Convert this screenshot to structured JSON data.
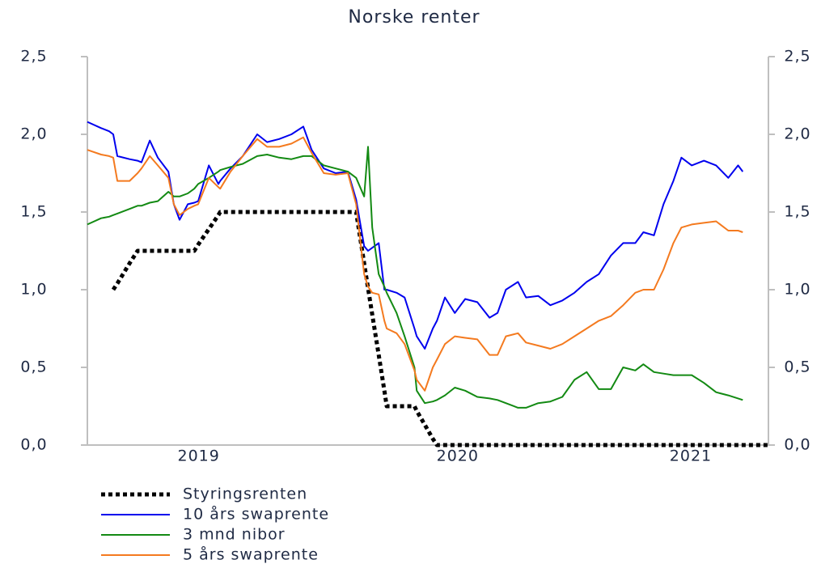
{
  "chart_data": {
    "type": "line",
    "title": "Norske renter",
    "x": [
      2019.07,
      2019.123,
      2019.154,
      2019.17,
      2019.186,
      2019.233,
      2019.264,
      2019.279,
      2019.311,
      2019.342,
      2019.383,
      2019.404,
      2019.426,
      2019.458,
      2019.483,
      2019.498,
      2019.539,
      2019.576,
      2019.583,
      2019.623,
      2019.67,
      2019.726,
      2019.764,
      2019.811,
      2019.858,
      2019.904,
      2019.936,
      2019.983,
      2020.029,
      2020.076,
      2020.108,
      2020.139,
      2020.154,
      2020.17,
      2020.195,
      2020.217,
      2020.226,
      2020.264,
      2020.295,
      2020.333,
      2020.342,
      2020.373,
      2020.404,
      2020.42,
      2020.451,
      2020.489,
      2020.529,
      2020.576,
      2020.623,
      2020.654,
      2020.686,
      2020.733,
      2020.764,
      2020.811,
      2020.858,
      2020.904,
      2020.951,
      2020.998,
      2021.045,
      2021.092,
      2021.139,
      2021.186,
      2021.217,
      2021.258,
      2021.295,
      2021.333,
      2021.364,
      2021.404,
      2021.451,
      2021.498,
      2021.545,
      2021.583,
      2021.601,
      2021.7
    ],
    "xlim": [
      2019.07,
      2021.7
    ],
    "xticks": [
      {
        "value": 2019.5,
        "label": "2019"
      },
      {
        "value": 2020.5,
        "label": "2020"
      },
      {
        "value": 2021.4,
        "label": "2021"
      }
    ],
    "ylim": [
      0,
      2.5
    ],
    "yticks": [
      {
        "value": 0,
        "label": "0,0"
      },
      {
        "value": 0.5,
        "label": "0,5"
      },
      {
        "value": 1,
        "label": "1,0"
      },
      {
        "value": 1.5,
        "label": "1,5"
      },
      {
        "value": 2,
        "label": "2,0"
      },
      {
        "value": 2.5,
        "label": "2,5"
      }
    ],
    "y2lim": [
      0,
      2.5
    ],
    "y2ticks": [
      {
        "value": 0,
        "label": "0,0"
      },
      {
        "value": 0.5,
        "label": "0,5"
      },
      {
        "value": 1,
        "label": "1,0"
      },
      {
        "value": 1.5,
        "label": "1,5"
      },
      {
        "value": 2,
        "label": "2,0"
      },
      {
        "value": 2.5,
        "label": "2,5"
      }
    ],
    "legend": "bottom-left",
    "series": [
      {
        "name": "Styringsrenten",
        "color": "#000000",
        "dotted": true,
        "values": [
          null,
          null,
          null,
          1.0,
          1.04,
          1.17,
          1.25,
          1.25,
          1.25,
          1.25,
          1.25,
          1.25,
          1.25,
          1.25,
          1.25,
          1.29,
          1.39,
          1.48,
          1.5,
          1.5,
          1.5,
          1.5,
          1.5,
          1.5,
          1.5,
          1.5,
          1.5,
          1.5,
          1.5,
          1.5,
          1.5,
          1.17,
          1.01,
          0.84,
          0.58,
          0.35,
          0.25,
          0.25,
          0.25,
          0.25,
          0.22,
          0.13,
          0.04,
          0,
          0,
          0,
          0,
          0,
          0,
          0,
          0,
          0,
          0,
          0,
          0,
          0,
          0,
          0,
          0,
          0,
          0,
          0,
          0,
          0,
          0,
          0,
          0,
          0,
          0,
          0,
          0,
          0,
          0,
          0
        ]
      },
      {
        "name": "10 års swaprente",
        "color": "#0000ee",
        "values": [
          2.08,
          2.04,
          2.02,
          2.0,
          1.86,
          1.84,
          1.83,
          1.82,
          1.96,
          1.85,
          1.76,
          1.55,
          1.45,
          1.55,
          1.56,
          1.57,
          1.8,
          1.68,
          1.7,
          1.78,
          1.86,
          2.0,
          1.95,
          1.97,
          2.0,
          2.05,
          1.9,
          1.78,
          1.75,
          1.76,
          1.58,
          1.28,
          1.25,
          1.27,
          1.3,
          1.0,
          1.0,
          0.98,
          0.95,
          0.75,
          0.7,
          0.62,
          0.75,
          0.8,
          0.95,
          0.85,
          0.94,
          0.92,
          0.82,
          0.85,
          1.0,
          1.05,
          0.95,
          0.96,
          0.9,
          0.93,
          0.98,
          1.05,
          1.1,
          1.22,
          1.3,
          1.3,
          1.37,
          1.35,
          1.55,
          1.7,
          1.85,
          1.8,
          1.83,
          1.8,
          1.72,
          1.8,
          1.76,
          null
        ]
      },
      {
        "name": "3 mnd nibor",
        "color": "#138a13",
        "values": [
          1.42,
          1.46,
          1.47,
          1.48,
          1.49,
          1.52,
          1.54,
          1.54,
          1.56,
          1.57,
          1.63,
          1.6,
          1.6,
          1.62,
          1.65,
          1.68,
          1.72,
          1.76,
          1.77,
          1.79,
          1.81,
          1.86,
          1.87,
          1.85,
          1.84,
          1.86,
          1.86,
          1.8,
          1.78,
          1.76,
          1.72,
          1.6,
          1.92,
          1.4,
          1.1,
          1.02,
          0.98,
          0.85,
          0.7,
          0.5,
          0.35,
          0.27,
          0.28,
          0.29,
          0.32,
          0.37,
          0.35,
          0.31,
          0.3,
          0.29,
          0.27,
          0.24,
          0.24,
          0.27,
          0.28,
          0.31,
          0.42,
          0.47,
          0.36,
          0.36,
          0.5,
          0.48,
          0.52,
          0.47,
          0.46,
          0.45,
          0.45,
          0.45,
          0.4,
          0.34,
          0.32,
          0.3,
          0.29,
          null
        ]
      },
      {
        "name": "5 års swaprente",
        "color": "#f47a1f",
        "values": [
          1.9,
          1.87,
          1.86,
          1.85,
          1.7,
          1.7,
          1.75,
          1.78,
          1.86,
          1.8,
          1.72,
          1.55,
          1.48,
          1.52,
          1.54,
          1.55,
          1.72,
          1.66,
          1.65,
          1.76,
          1.86,
          1.97,
          1.92,
          1.92,
          1.94,
          1.98,
          1.88,
          1.75,
          1.74,
          1.75,
          1.55,
          1.1,
          1.02,
          0.98,
          0.97,
          0.8,
          0.75,
          0.72,
          0.65,
          0.48,
          0.42,
          0.35,
          0.5,
          0.55,
          0.65,
          0.7,
          0.69,
          0.68,
          0.58,
          0.58,
          0.7,
          0.72,
          0.66,
          0.64,
          0.62,
          0.65,
          0.7,
          0.75,
          0.8,
          0.83,
          0.9,
          0.98,
          1.0,
          1.0,
          1.13,
          1.3,
          1.4,
          1.42,
          1.43,
          1.44,
          1.38,
          1.38,
          1.37,
          null
        ]
      }
    ]
  }
}
